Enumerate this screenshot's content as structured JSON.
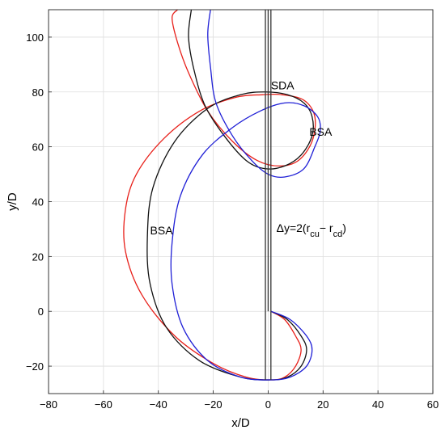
{
  "chart_data": {
    "type": "line",
    "xlabel": "x/D",
    "ylabel": "y/D",
    "xlim": [
      -80,
      60
    ],
    "ylim": [
      -30,
      110
    ],
    "xticks": [
      -80,
      -60,
      -40,
      -20,
      0,
      20,
      40,
      60
    ],
    "yticks": [
      -20,
      0,
      20,
      40,
      60,
      80,
      100
    ],
    "grid": true,
    "annotations": [
      {
        "text": "SDA",
        "x": 1,
        "y": 81
      },
      {
        "text": "BSA",
        "x": 15,
        "y": 64
      },
      {
        "text": "BSA",
        "x": -43,
        "y": 28
      },
      {
        "text": "Δy=2(r",
        "x": 3,
        "y": 29,
        "parts": [
          {
            "text": "Δy=2(r"
          },
          {
            "text": "cu",
            "sub": true
          },
          {
            "text": "− r"
          },
          {
            "text": "cd",
            "sub": true
          },
          {
            "text": ")"
          }
        ]
      }
    ],
    "colors": {
      "red": "#e8201a",
      "black": "#111111",
      "blue": "#1f1fd6"
    },
    "series": [
      {
        "color": "#e8201a",
        "x": [
          1,
          6,
          10,
          12,
          10,
          6,
          1,
          -8,
          -20,
          -34,
          -46,
          -52,
          -52,
          -48,
          -38,
          -25,
          -12,
          -2,
          5,
          13,
          17,
          16,
          11,
          4,
          -4,
          -13,
          -22,
          -29,
          -33,
          -35,
          -33
        ],
        "y": [
          0,
          -3,
          -9,
          -14,
          -20,
          -24,
          -25,
          -24,
          -19,
          -9,
          6,
          22,
          37,
          50,
          63,
          73,
          78,
          79,
          79,
          77,
          71,
          62,
          55,
          53,
          55,
          62,
          73,
          87,
          98,
          107,
          110
        ]
      },
      {
        "color": "#111111",
        "x": [
          1,
          7,
          12,
          14,
          12,
          7,
          1,
          -10,
          -25,
          -37,
          -43,
          -44,
          -42,
          -34,
          -22,
          -10,
          -1,
          7,
          13,
          16,
          16,
          12,
          6,
          -1,
          -8,
          -16,
          -23,
          -27,
          -29,
          -28
        ],
        "y": [
          0,
          -3,
          -9,
          -14,
          -20,
          -24,
          -25,
          -24,
          -18,
          -6,
          10,
          27,
          45,
          62,
          74,
          79,
          80,
          79,
          76,
          71,
          64,
          57,
          53,
          52,
          55,
          64,
          75,
          88,
          100,
          110
        ]
      },
      {
        "color": "#1f1fd6",
        "x": [
          1,
          8,
          14,
          16,
          14,
          8,
          1,
          -10,
          -22,
          -31,
          -35,
          -35,
          -32,
          -24,
          -13,
          -3,
          6,
          13,
          18,
          19,
          17,
          13,
          6,
          0,
          -6,
          -13,
          -19,
          -21,
          -22,
          -21
        ],
        "y": [
          0,
          -3,
          -9,
          -14,
          -20,
          -24,
          -25,
          -24,
          -18,
          -6,
          10,
          25,
          42,
          57,
          67,
          73,
          76,
          75,
          71,
          66,
          60,
          52,
          49,
          50,
          55,
          64,
          76,
          89,
          101,
          110
        ]
      },
      {
        "color": "#333333",
        "x": [
          -1,
          -1
        ],
        "y": [
          -25,
          110
        ]
      },
      {
        "color": "#333333",
        "x": [
          0,
          0
        ],
        "y": [
          0,
          110
        ]
      },
      {
        "color": "#333333",
        "x": [
          1,
          1
        ],
        "y": [
          -25,
          110
        ]
      }
    ]
  }
}
